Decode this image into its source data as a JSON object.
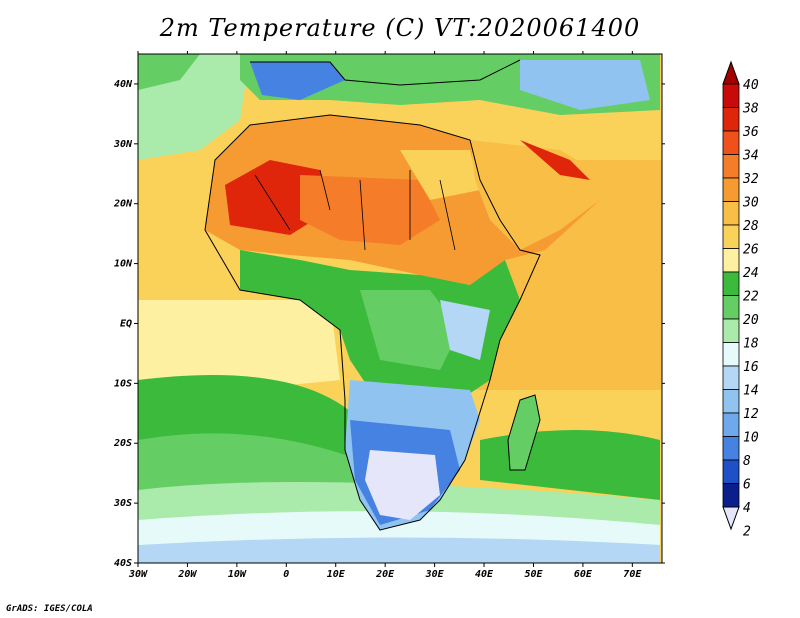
{
  "title": "2m Temperature (C) VT:2020061400",
  "credit": "GrADS: IGES/COLA",
  "map": {
    "lon_range": [
      -30,
      76
    ],
    "lat_range": [
      -40,
      45
    ],
    "x_ticks": [
      "30W",
      "20W",
      "10W",
      "0",
      "10E",
      "20E",
      "30E",
      "40E",
      "50E",
      "60E",
      "70E"
    ],
    "y_ticks": [
      "40N",
      "30N",
      "20N",
      "10N",
      "EQ",
      "10S",
      "20S",
      "30S",
      "40S"
    ]
  },
  "colorbar": {
    "labels": [
      "40",
      "38",
      "36",
      "34",
      "32",
      "30",
      "28",
      "26",
      "24",
      "22",
      "20",
      "18",
      "16",
      "14",
      "12",
      "10",
      "8",
      "6",
      "4",
      "2"
    ],
    "colors": [
      "#a00000",
      "#c80a0a",
      "#e0260a",
      "#f0501a",
      "#f57c28",
      "#f59b32",
      "#f8be46",
      "#fad25a",
      "#fdf0a0",
      "#3cba3c",
      "#64cd64",
      "#aaeaaa",
      "#e6fafa",
      "#b4d7f5",
      "#91c3f0",
      "#6eaaeb",
      "#4682e1",
      "#1e50c8",
      "#0a1e8c",
      "#e6e6fa"
    ]
  }
}
